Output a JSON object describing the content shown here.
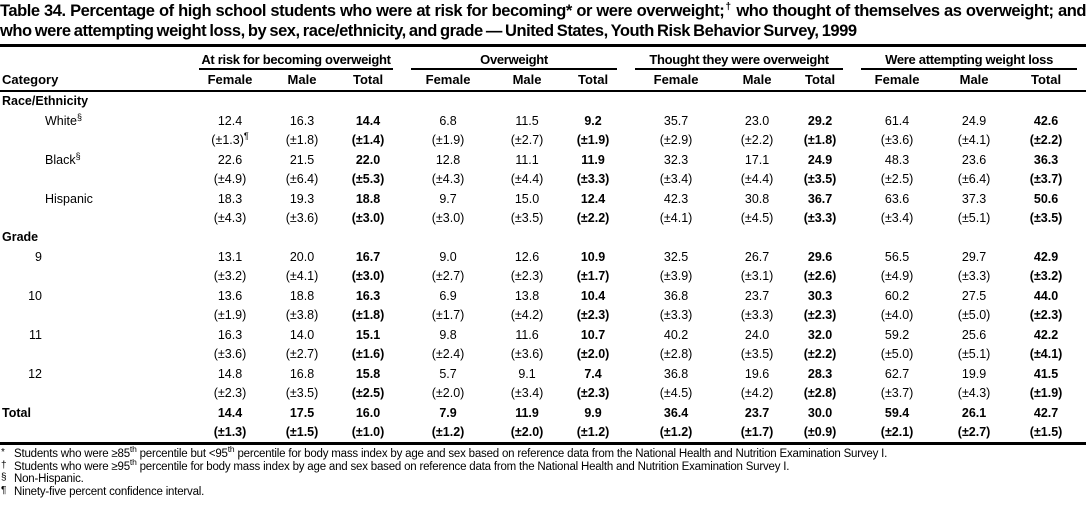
{
  "title": "Table 34. Percentage of high school students who were at risk for becoming* or were overweight;† who thought of themselves as overweight; and who were attempting weight loss, by sex, race/ethnicity, and grade — United States, Youth Risk Behavior Survey, 1999",
  "table": {
    "category_header": "Category",
    "groups": [
      "At risk for becoming overweight",
      "Overweight",
      "Thought they were overweight",
      "Were attempting weight loss"
    ],
    "sub_headers": [
      "Female",
      "Male",
      "Total"
    ],
    "sections": [
      {
        "label": "Race/Ethnicity",
        "rows": [
          {
            "label": "White",
            "label_sup": "§",
            "values": [
              "12.4",
              "16.3",
              "14.4",
              "6.8",
              "11.5",
              "9.2",
              "35.7",
              "23.0",
              "29.2",
              "61.4",
              "24.9",
              "42.6"
            ],
            "ci": [
              "(±1.3)¶",
              "(±1.8)",
              "(±1.4)",
              "(±1.9)",
              "(±2.7)",
              "(±1.9)",
              "(±2.9)",
              "(±2.2)",
              "(±1.8)",
              "(±3.6)",
              "(±4.1)",
              "(±2.2)"
            ]
          },
          {
            "label": "Black",
            "label_sup": "§",
            "values": [
              "22.6",
              "21.5",
              "22.0",
              "12.8",
              "11.1",
              "11.9",
              "32.3",
              "17.1",
              "24.9",
              "48.3",
              "23.6",
              "36.3"
            ],
            "ci": [
              "(±4.9)",
              "(±6.4)",
              "(±5.3)",
              "(±4.3)",
              "(±4.4)",
              "(±3.3)",
              "(±3.4)",
              "(±4.4)",
              "(±3.5)",
              "(±2.5)",
              "(±6.4)",
              "(±3.7)"
            ]
          },
          {
            "label": "Hispanic",
            "label_sup": "",
            "values": [
              "18.3",
              "19.3",
              "18.8",
              "9.7",
              "15.0",
              "12.4",
              "42.3",
              "30.8",
              "36.7",
              "63.6",
              "37.3",
              "50.6"
            ],
            "ci": [
              "(±4.3)",
              "(±3.6)",
              "(±3.0)",
              "(±3.0)",
              "(±3.5)",
              "(±2.2)",
              "(±4.1)",
              "(±4.5)",
              "(±3.3)",
              "(±3.4)",
              "(±5.1)",
              "(±3.5)"
            ]
          }
        ]
      },
      {
        "label": "Grade",
        "rows": [
          {
            "label": "9",
            "label_sup": "",
            "values": [
              "13.1",
              "20.0",
              "16.7",
              "9.0",
              "12.6",
              "10.9",
              "32.5",
              "26.7",
              "29.6",
              "56.5",
              "29.7",
              "42.9"
            ],
            "ci": [
              "(±3.2)",
              "(±4.1)",
              "(±3.0)",
              "(±2.7)",
              "(±2.3)",
              "(±1.7)",
              "(±3.9)",
              "(±3.1)",
              "(±2.6)",
              "(±4.9)",
              "(±3.3)",
              "(±3.2)"
            ]
          },
          {
            "label": "10",
            "label_sup": "",
            "values": [
              "13.6",
              "18.8",
              "16.3",
              "6.9",
              "13.8",
              "10.4",
              "36.8",
              "23.7",
              "30.3",
              "60.2",
              "27.5",
              "44.0"
            ],
            "ci": [
              "(±1.9)",
              "(±3.8)",
              "(±1.8)",
              "(±1.7)",
              "(±4.2)",
              "(±2.3)",
              "(±3.3)",
              "(±3.3)",
              "(±2.3)",
              "(±4.0)",
              "(±5.0)",
              "(±2.3)"
            ]
          },
          {
            "label": "11",
            "label_sup": "",
            "values": [
              "16.3",
              "14.0",
              "15.1",
              "9.8",
              "11.6",
              "10.7",
              "40.2",
              "24.0",
              "32.0",
              "59.2",
              "25.6",
              "42.2"
            ],
            "ci": [
              "(±3.6)",
              "(±2.7)",
              "(±1.6)",
              "(±2.4)",
              "(±3.6)",
              "(±2.0)",
              "(±2.8)",
              "(±3.5)",
              "(±2.2)",
              "(±5.0)",
              "(±5.1)",
              "(±4.1)"
            ]
          },
          {
            "label": "12",
            "label_sup": "",
            "values": [
              "14.8",
              "16.8",
              "15.8",
              "5.7",
              "9.1",
              "7.4",
              "36.8",
              "19.6",
              "28.3",
              "62.7",
              "19.9",
              "41.5"
            ],
            "ci": [
              "(±2.3)",
              "(±3.5)",
              "(±2.5)",
              "(±2.0)",
              "(±3.4)",
              "(±2.3)",
              "(±4.5)",
              "(±4.2)",
              "(±2.8)",
              "(±3.7)",
              "(±4.3)",
              "(±1.9)"
            ]
          }
        ]
      }
    ],
    "total_row": {
      "label": "Total",
      "values": [
        "14.4",
        "17.5",
        "16.0",
        "7.9",
        "11.9",
        "9.9",
        "36.4",
        "23.7",
        "30.0",
        "59.4",
        "26.1",
        "42.7"
      ],
      "ci": [
        "(±1.3)",
        "(±1.5)",
        "(±1.0)",
        "(±1.2)",
        "(±2.0)",
        "(±1.2)",
        "(±1.2)",
        "(±1.7)",
        "(±0.9)",
        "(±2.1)",
        "(±2.7)",
        "(±1.5)"
      ]
    }
  },
  "footnotes": [
    {
      "marker": "*",
      "text": "Students who were ≥85th percentile but <95th percentile for body mass index by age and sex based on reference data from the National Health and Nutrition Examination Survey I."
    },
    {
      "marker": "†",
      "text": "Students who were ≥95th percentile for body mass index by age and sex based on reference data from the National Health and Nutrition Examination Survey I."
    },
    {
      "marker": "§",
      "text": "Non-Hispanic."
    },
    {
      "marker": "¶",
      "text": "Ninety-five percent confidence interval."
    }
  ]
}
